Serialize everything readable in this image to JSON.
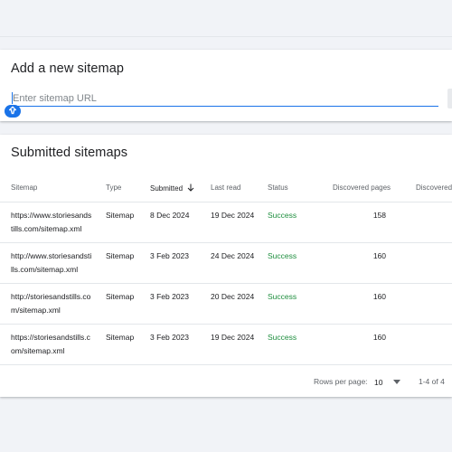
{
  "add_sitemap": {
    "title": "Add a new sitemap",
    "input_placeholder": "Enter sitemap URL",
    "input_value": ""
  },
  "submitted": {
    "title": "Submitted sitemaps",
    "columns": [
      "Sitemap",
      "Type",
      "Submitted",
      "Last read",
      "Status",
      "Discovered pages",
      "Discovered v"
    ],
    "sorted_column": "Submitted",
    "sort_direction": "descending",
    "rows": [
      {
        "sitemap_l1": "https://www.storiesands",
        "sitemap_l2": "tills.com/sitemap.xml",
        "type": "Sitemap",
        "submitted": "8 Dec 2024",
        "last_read": "19 Dec 2024",
        "status": "Success",
        "pages": "158"
      },
      {
        "sitemap_l1": "http://www.storiesandsti",
        "sitemap_l2": "lls.com/sitemap.xml",
        "type": "Sitemap",
        "submitted": "3 Feb 2023",
        "last_read": "24 Dec 2024",
        "status": "Success",
        "pages": "160"
      },
      {
        "sitemap_l1": "http://storiesandstills.co",
        "sitemap_l2": "m/sitemap.xml",
        "type": "Sitemap",
        "submitted": "3 Feb 2023",
        "last_read": "20 Dec 2024",
        "status": "Success",
        "pages": "160"
      },
      {
        "sitemap_l1": "https://storiesandstills.c",
        "sitemap_l2": "om/sitemap.xml",
        "type": "Sitemap",
        "submitted": "3 Feb 2023",
        "last_read": "19 Dec 2024",
        "status": "Success",
        "pages": "160"
      }
    ],
    "footer": {
      "rows_per_page_label": "Rows per page:",
      "rows_per_page_value": "10",
      "range": "1-4 of 4"
    }
  },
  "colors": {
    "accent": "#1a73e8",
    "success": "#1e8e3e",
    "background": "#f1f3f7"
  },
  "icons": [
    "assistant-arrow-icon",
    "sort-arrow-down-icon",
    "dropdown-caret-icon"
  ]
}
